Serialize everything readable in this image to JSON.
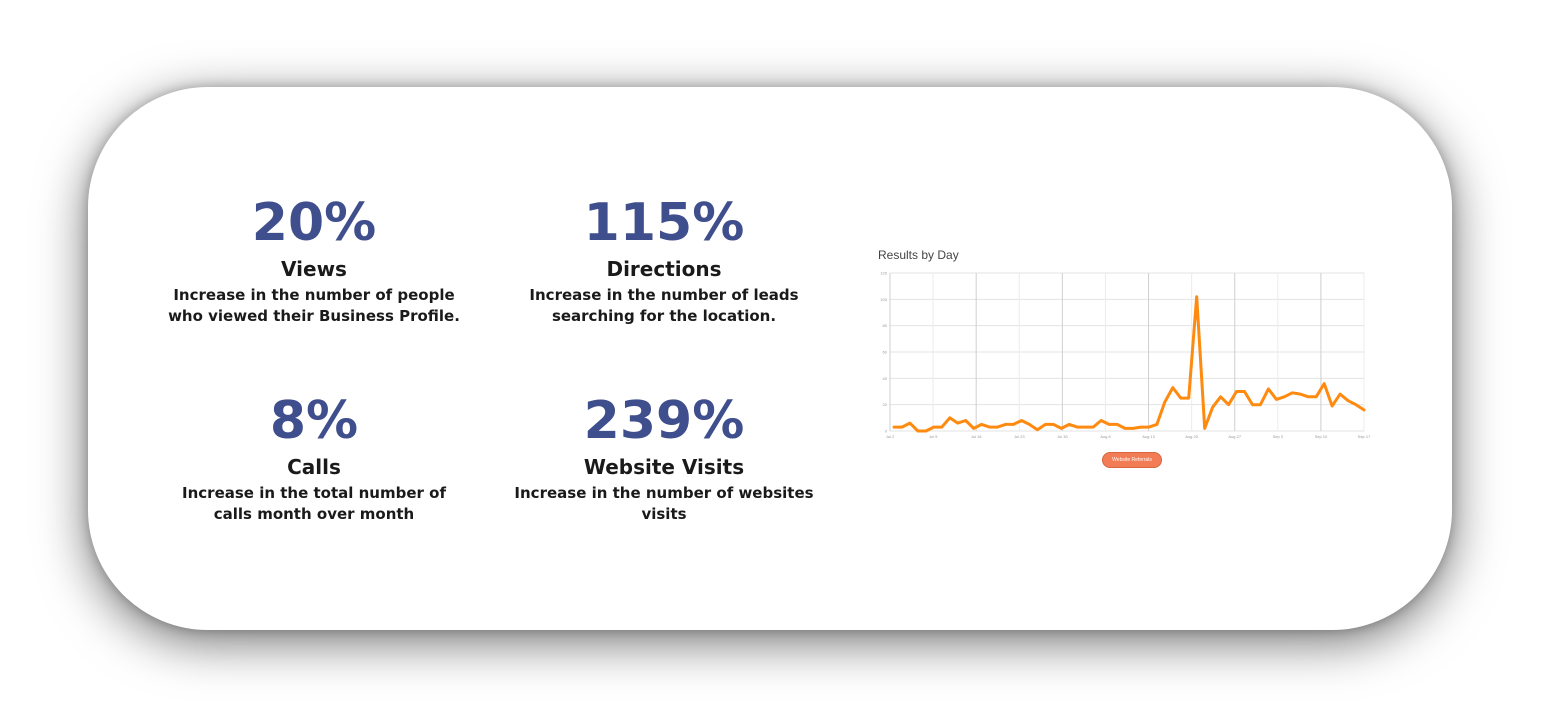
{
  "stats": [
    {
      "value": "20%",
      "label": "Views",
      "desc_line1": "Increase in the number of people",
      "desc_line2": "who viewed their Business Profile."
    },
    {
      "value": "115%",
      "label": "Directions",
      "desc_line1": "Increase in the number of leads",
      "desc_line2": "searching for the location."
    },
    {
      "value": "8%",
      "label": "Calls",
      "desc_line1": "Increase in the total number of",
      "desc_line2": "calls month over month"
    },
    {
      "value": "239%",
      "label": "Website Visits",
      "desc_line1": "Increase in the number of websites",
      "desc_line2": "visits"
    }
  ],
  "chart_title": "Results by Day",
  "chart_button_label": "Website Referrals",
  "colors": {
    "accent": "#3f4e8c",
    "line": "#ff8a10",
    "button": "#f27c55"
  },
  "chart_data": {
    "type": "line",
    "title": "Results by Day",
    "ylim": [
      0,
      120
    ],
    "yticks": [
      0,
      20,
      40,
      60,
      80,
      100,
      120
    ],
    "xticks": [
      "Jul 2",
      "Jul 9",
      "Jul 16",
      "Jul 23",
      "Jul 30",
      "Aug 6",
      "Aug 13",
      "Aug 20",
      "Aug 27",
      "Sep 3",
      "Sep 10",
      "Sep 17"
    ],
    "series": [
      {
        "values": [
          3,
          3,
          6,
          0,
          0,
          3,
          3,
          10,
          6,
          8,
          2,
          5,
          3,
          3,
          5,
          5,
          8,
          5,
          1,
          5,
          5,
          2,
          5,
          3,
          3,
          3,
          8,
          5,
          5,
          2,
          2,
          3,
          3,
          5,
          22,
          33,
          25,
          25,
          102,
          2,
          18,
          26,
          20,
          30,
          30,
          20,
          20,
          32,
          24,
          26,
          29,
          28,
          26,
          26,
          36,
          19,
          28,
          23,
          20,
          16
        ]
      }
    ]
  }
}
